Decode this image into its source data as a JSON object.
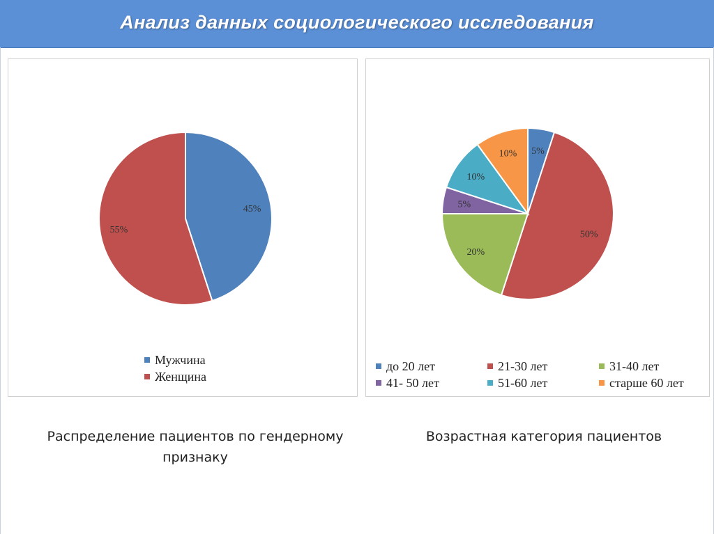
{
  "header": {
    "title": "Анализ данных социологического исследования"
  },
  "colors": {
    "blue": "#4f81bd",
    "red": "#c0504d",
    "green": "#9bbb59",
    "purple": "#8064a2",
    "aqua": "#4bacc6",
    "orange": "#f79646"
  },
  "chart_data": [
    {
      "type": "pie",
      "title": "",
      "categories": [
        "Мужчина",
        "Женщина"
      ],
      "values": [
        45,
        55
      ],
      "data_labels": [
        "45%",
        "55%"
      ],
      "colors": [
        "#4f81bd",
        "#c0504d"
      ],
      "start_angle_deg": 0,
      "legend_position": "bottom",
      "caption": "Распределение пациентов по гендерному признаку"
    },
    {
      "type": "pie",
      "title": "",
      "categories": [
        "до 20 лет",
        "21-30 лет",
        "31-40 лет",
        "41- 50 лет",
        "51-60 лет",
        "старше 60 лет"
      ],
      "values": [
        5,
        50,
        20,
        5,
        10,
        10
      ],
      "data_labels": [
        "5%",
        "50%",
        "20%",
        "5%",
        "10%",
        "10%"
      ],
      "colors": [
        "#4f81bd",
        "#c0504d",
        "#9bbb59",
        "#8064a2",
        "#4bacc6",
        "#f79646"
      ],
      "start_angle_deg": 0,
      "legend_position": "bottom",
      "caption": "Возрастная категория пациентов"
    }
  ]
}
